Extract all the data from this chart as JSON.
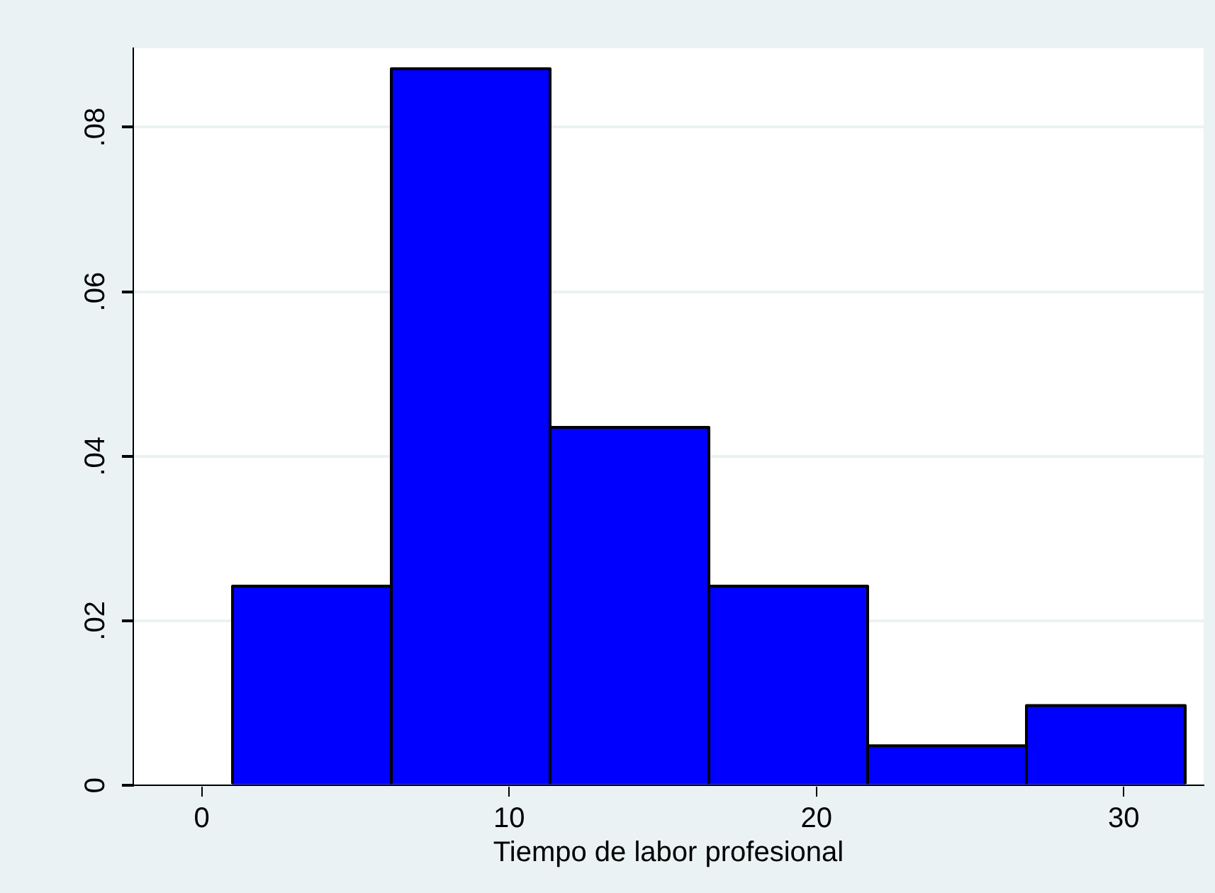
{
  "chart_data": {
    "type": "histogram",
    "xlabel": "Tiempo de labor profesional",
    "bins": [
      1,
      6.1667,
      11.3333,
      16.5,
      21.6667,
      26.8333,
      32
    ],
    "values": [
      0.0242,
      0.0871,
      0.0435,
      0.0242,
      0.0048,
      0.0097
    ],
    "color": "#0000ff",
    "xlim": [
      -2.23,
      32.6
    ],
    "xticks": [
      0,
      10,
      20,
      30
    ],
    "ylim": [
      0,
      0.0896
    ],
    "yticks": [
      0,
      {
        "value": 0.02,
        "label": ".02"
      },
      {
        "value": 0.04,
        "label": ".04"
      },
      {
        "value": 0.06,
        "label": ".06"
      },
      {
        "value": 0.08,
        "label": ".08"
      }
    ],
    "grid": "y",
    "legend": false
  }
}
